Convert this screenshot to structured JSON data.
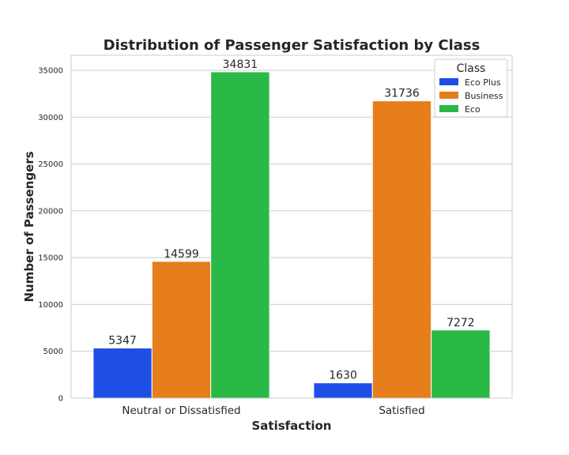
{
  "chart_data": {
    "type": "bar",
    "title": "Distribution of Passenger Satisfaction by Class",
    "xlabel": "Satisfaction",
    "ylabel": "Number of Passengers",
    "categories": [
      "Neutral or Dissatisfied",
      "Satisfied"
    ],
    "series": [
      {
        "name": "Eco Plus",
        "color": "#1f4ee6",
        "values": [
          5347,
          1630
        ]
      },
      {
        "name": "Business",
        "color": "#e67e1c",
        "values": [
          14599,
          31736
        ]
      },
      {
        "name": "Eco",
        "color": "#2ab847",
        "values": [
          34831,
          7272
        ]
      }
    ],
    "ylim": [
      0,
      36600
    ],
    "yticks": [
      0,
      5000,
      10000,
      15000,
      20000,
      25000,
      30000,
      35000
    ],
    "grid": true,
    "legend": {
      "title": "Class",
      "placement": "top-right"
    }
  }
}
